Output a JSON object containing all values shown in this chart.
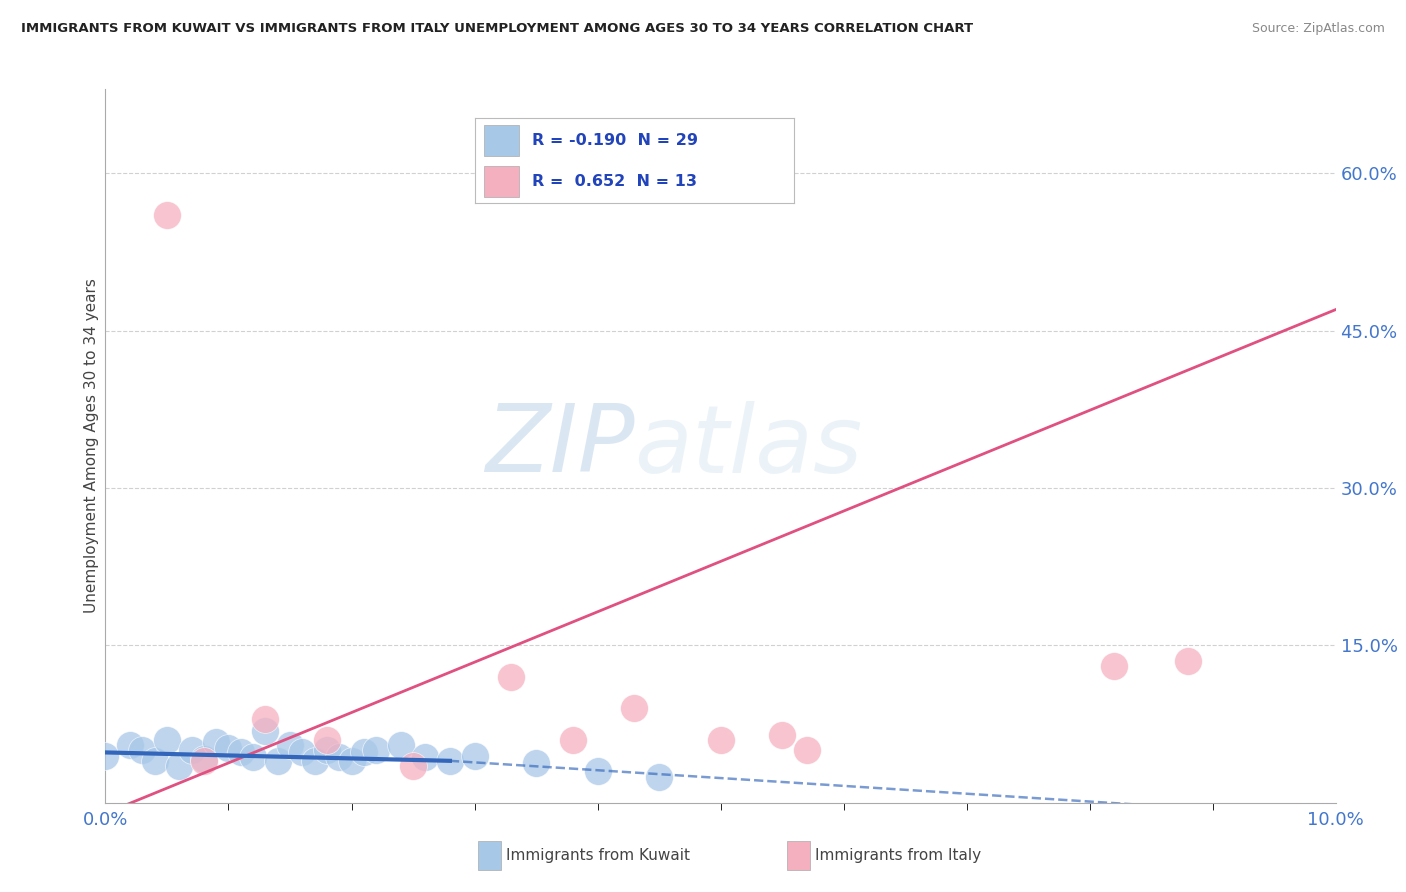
{
  "title": "IMMIGRANTS FROM KUWAIT VS IMMIGRANTS FROM ITALY UNEMPLOYMENT AMONG AGES 30 TO 34 YEARS CORRELATION CHART",
  "source": "Source: ZipAtlas.com",
  "ylabel": "Unemployment Among Ages 30 to 34 years",
  "xlim": [
    0.0,
    0.1
  ],
  "ylim": [
    0.0,
    0.68
  ],
  "xtick_positions": [
    0.0,
    0.1
  ],
  "xtick_labels": [
    "0.0%",
    "10.0%"
  ],
  "ytick_positions": [
    0.15,
    0.3,
    0.45,
    0.6
  ],
  "ytick_labels": [
    "15.0%",
    "30.0%",
    "45.0%",
    "60.0%"
  ],
  "kuwait_R": -0.19,
  "kuwait_N": 29,
  "italy_R": 0.652,
  "italy_N": 13,
  "kuwait_scatter_color": "#a8c8e8",
  "italy_scatter_color": "#f5b0c0",
  "kuwait_line_color": "#3366bb",
  "italy_line_color": "#e05080",
  "grid_color": "#cccccc",
  "bg_color": "#ffffff",
  "watermark_zip": "ZIP",
  "watermark_atlas": "atlas",
  "kuwait_x": [
    0.0,
    0.002,
    0.003,
    0.004,
    0.005,
    0.006,
    0.007,
    0.008,
    0.009,
    0.01,
    0.011,
    0.012,
    0.013,
    0.014,
    0.015,
    0.016,
    0.017,
    0.018,
    0.019,
    0.02,
    0.021,
    0.022,
    0.024,
    0.026,
    0.028,
    0.03,
    0.035,
    0.04,
    0.045
  ],
  "kuwait_y": [
    0.045,
    0.055,
    0.05,
    0.04,
    0.06,
    0.035,
    0.05,
    0.042,
    0.058,
    0.052,
    0.048,
    0.044,
    0.068,
    0.04,
    0.055,
    0.048,
    0.04,
    0.05,
    0.044,
    0.04,
    0.048,
    0.05,
    0.055,
    0.044,
    0.04,
    0.045,
    0.038,
    0.03,
    0.025
  ],
  "italy_x": [
    0.005,
    0.008,
    0.013,
    0.018,
    0.025,
    0.033,
    0.038,
    0.043,
    0.05,
    0.055,
    0.057,
    0.082,
    0.088
  ],
  "italy_y": [
    0.56,
    0.04,
    0.08,
    0.06,
    0.035,
    0.12,
    0.06,
    0.09,
    0.06,
    0.065,
    0.05,
    0.13,
    0.135
  ],
  "italy_line_x0": 0.0,
  "italy_line_y0": -0.01,
  "italy_line_x1": 0.1,
  "italy_line_y1": 0.47,
  "kuwait_line_x0": 0.0,
  "kuwait_line_y0": 0.048,
  "kuwait_line_x1_solid": 0.028,
  "kuwait_line_y1_solid": 0.04,
  "kuwait_line_x1_dash": 0.095,
  "kuwait_line_y1_dash": -0.01
}
